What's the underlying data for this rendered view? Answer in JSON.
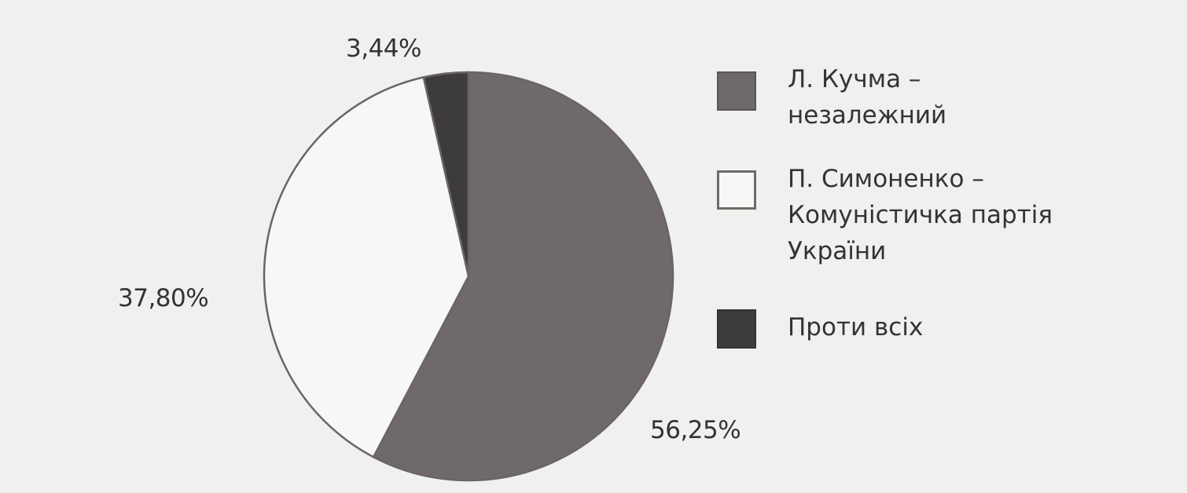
{
  "chart_data": {
    "type": "pie",
    "start_angle_deg": 0,
    "direction": "clockwise",
    "slices": [
      {
        "label_lines": [
          "Л. Кучма –",
          "незалежний"
        ],
        "value": 56.25,
        "value_label": "56,25%",
        "color": "#6f6a69"
      },
      {
        "label_lines": [
          "П. Симоненко –",
          "Комуністичка партія",
          "України"
        ],
        "value": 37.8,
        "value_label": "37,80%",
        "color": "#f7f7f5"
      },
      {
        "label_lines": [
          "Проти всіх"
        ],
        "value": 3.44,
        "value_label": "3,44%",
        "color": "#3e3b3c"
      }
    ],
    "legend_position": "right"
  }
}
